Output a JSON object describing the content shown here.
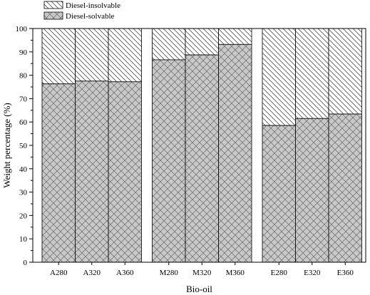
{
  "chart_data": {
    "type": "bar",
    "stacked": true,
    "title": "",
    "xlabel": "Bio-oil",
    "ylabel": "Weight percentage (%)",
    "ylim": [
      0,
      100
    ],
    "yticks": [
      0,
      10,
      20,
      30,
      40,
      50,
      60,
      70,
      80,
      90,
      100
    ],
    "grid": false,
    "legend_position": "top-left (above plot)",
    "groups": [
      [
        "A280",
        "A320",
        "A360"
      ],
      [
        "M280",
        "M320",
        "M360"
      ],
      [
        "E280",
        "E320",
        "E360"
      ]
    ],
    "categories": [
      "A280",
      "A320",
      "A360",
      "M280",
      "M320",
      "M360",
      "E280",
      "E320",
      "E360"
    ],
    "series": [
      {
        "name": "Diesel-solvable",
        "pattern": "crosshatch-gray",
        "fill_color": "#c8c8c8",
        "values": [
          76.3,
          77.5,
          77.2,
          86.6,
          88.7,
          93.2,
          58.5,
          61.5,
          63.4
        ]
      },
      {
        "name": "Diesel-insolvable",
        "pattern": "diagonal-hatch-white",
        "fill_color": "#ffffff",
        "values": [
          23.7,
          22.5,
          22.8,
          13.4,
          11.3,
          6.8,
          41.5,
          38.5,
          36.6
        ]
      }
    ]
  }
}
